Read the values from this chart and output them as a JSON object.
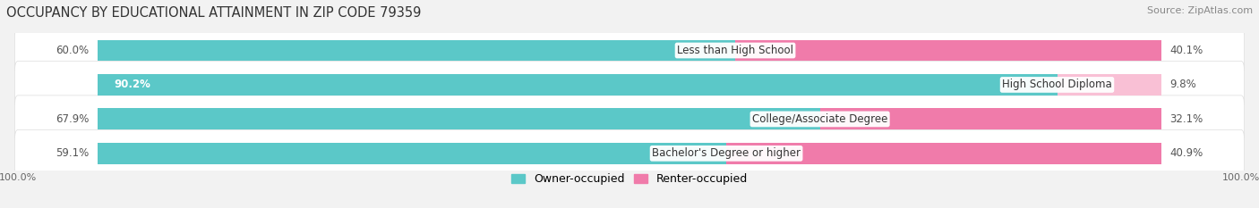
{
  "title": "OCCUPANCY BY EDUCATIONAL ATTAINMENT IN ZIP CODE 79359",
  "source": "Source: ZipAtlas.com",
  "categories": [
    "Less than High School",
    "High School Diploma",
    "College/Associate Degree",
    "Bachelor's Degree or higher"
  ],
  "owner_values": [
    60.0,
    90.2,
    67.9,
    59.1
  ],
  "renter_values": [
    40.1,
    9.8,
    32.1,
    40.9
  ],
  "owner_color": "#5BC8C8",
  "renter_color": "#F07BAA",
  "renter_color_light": "#F9C0D5",
  "owner_label": "Owner-occupied",
  "renter_label": "Renter-occupied",
  "background_color": "#f2f2f2",
  "row_bg_color": "#ffffff",
  "row_border_color": "#dddddd",
  "title_fontsize": 10.5,
  "source_fontsize": 8,
  "label_fontsize": 8.5,
  "pct_fontsize": 8.5,
  "legend_fontsize": 9
}
